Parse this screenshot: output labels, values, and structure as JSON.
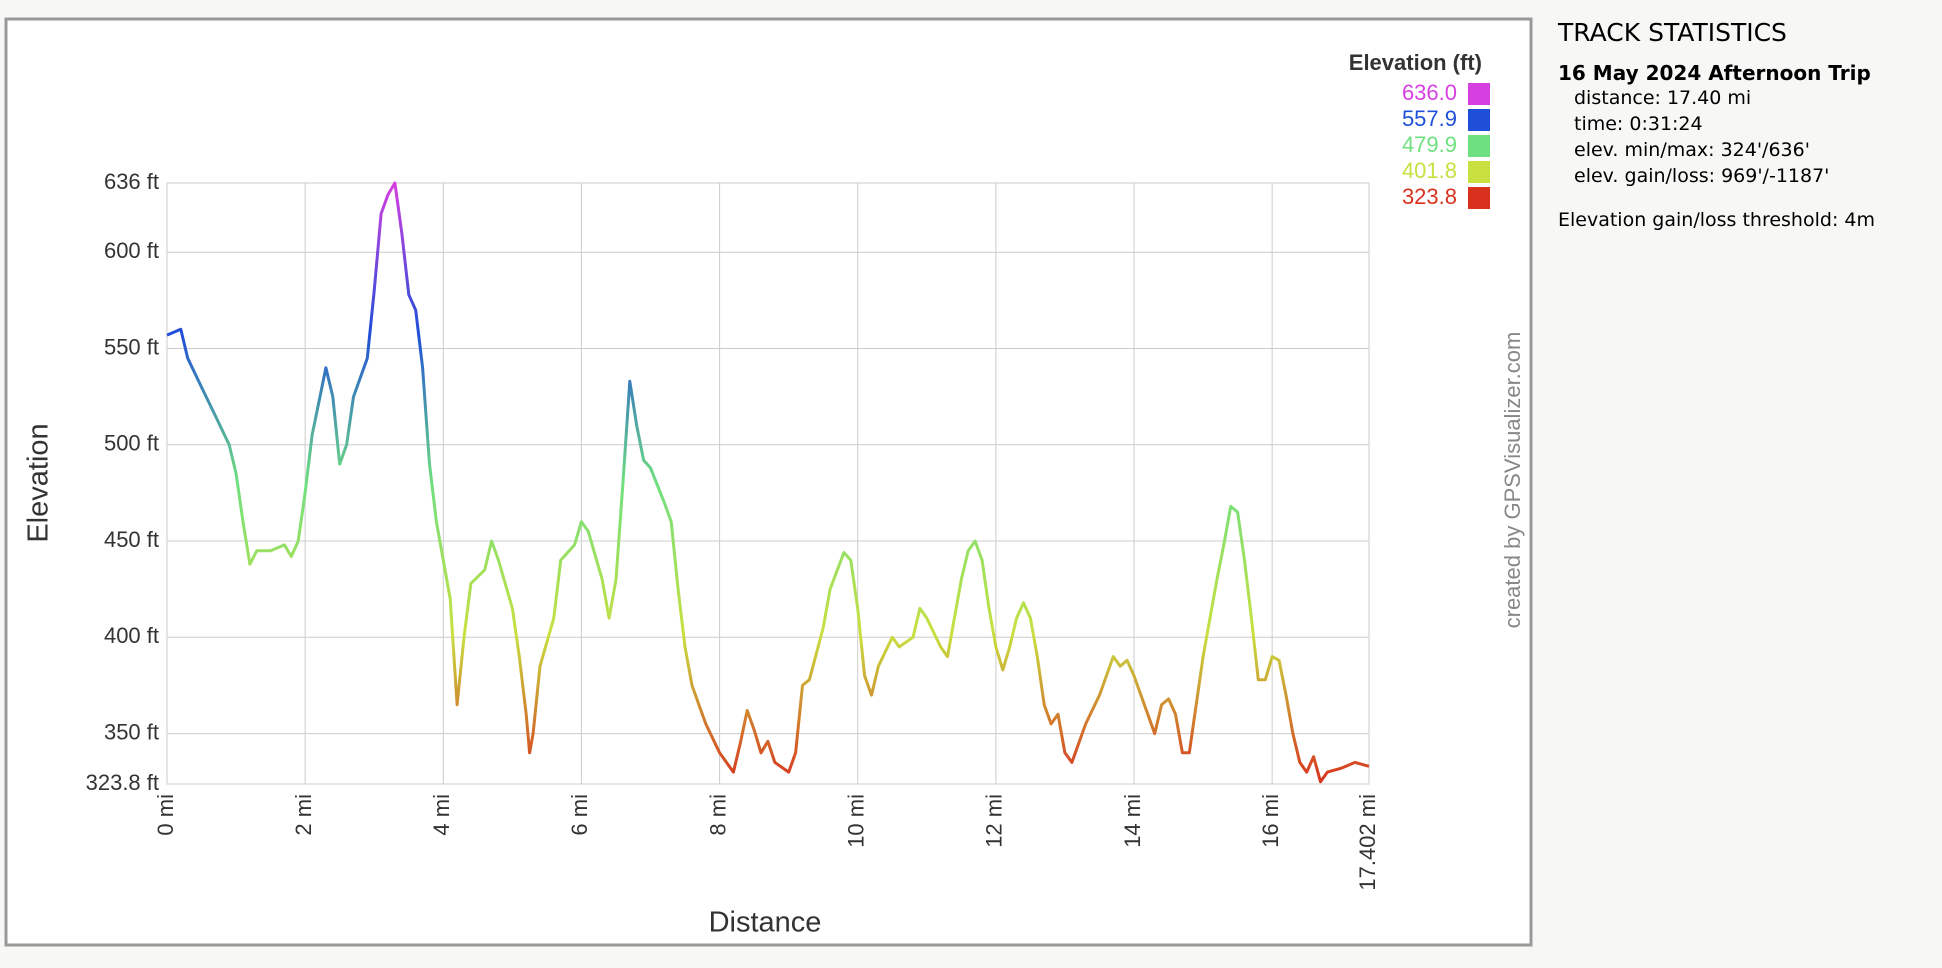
{
  "chart_data": {
    "type": "line",
    "x_label": "Distance",
    "y_label": "Elevation",
    "watermark": "created by GPSVisualizer.com",
    "x": [
      0,
      0.2,
      0.3,
      0.5,
      0.7,
      0.9,
      1.0,
      1.1,
      1.2,
      1.3,
      1.5,
      1.7,
      1.8,
      1.9,
      2.0,
      2.1,
      2.3,
      2.4,
      2.5,
      2.6,
      2.7,
      2.9,
      3.0,
      3.1,
      3.2,
      3.3,
      3.4,
      3.5,
      3.6,
      3.7,
      3.8,
      3.9,
      4.0,
      4.1,
      4.2,
      4.3,
      4.4,
      4.6,
      4.7,
      4.8,
      5.0,
      5.1,
      5.2,
      5.25,
      5.3,
      5.4,
      5.6,
      5.7,
      5.9,
      6.0,
      6.1,
      6.3,
      6.4,
      6.5,
      6.6,
      6.7,
      6.8,
      6.9,
      7.0,
      7.2,
      7.3,
      7.4,
      7.5,
      7.6,
      7.7,
      7.8,
      8.0,
      8.2,
      8.3,
      8.4,
      8.5,
      8.6,
      8.7,
      8.8,
      9.0,
      9.1,
      9.2,
      9.3,
      9.5,
      9.6,
      9.8,
      9.9,
      10.0,
      10.1,
      10.2,
      10.3,
      10.5,
      10.6,
      10.8,
      10.9,
      11.0,
      11.2,
      11.3,
      11.4,
      11.5,
      11.6,
      11.7,
      11.8,
      11.9,
      12.0,
      12.1,
      12.2,
      12.3,
      12.4,
      12.5,
      12.6,
      12.7,
      12.8,
      12.9,
      13.0,
      13.1,
      13.3,
      13.5,
      13.7,
      13.8,
      13.9,
      14.0,
      14.2,
      14.3,
      14.4,
      14.5,
      14.6,
      14.7,
      14.8,
      15.0,
      15.1,
      15.2,
      15.3,
      15.4,
      15.5,
      15.6,
      15.7,
      15.8,
      15.9,
      16.0,
      16.1,
      16.2,
      16.3,
      16.4,
      16.5,
      16.6,
      16.7,
      16.8,
      17.0,
      17.2,
      17.402
    ],
    "series": [
      {
        "name": "Elevation (ft)",
        "values": [
          557,
          560,
          545,
          530,
          515,
          500,
          485,
          460,
          438,
          445,
          445,
          448,
          442,
          450,
          475,
          505,
          540,
          525,
          490,
          500,
          525,
          545,
          580,
          620,
          630,
          636,
          610,
          578,
          570,
          540,
          490,
          460,
          440,
          420,
          365,
          400,
          428,
          435,
          450,
          440,
          415,
          390,
          360,
          340,
          350,
          385,
          410,
          440,
          448,
          460,
          455,
          430,
          410,
          430,
          480,
          533,
          510,
          492,
          488,
          470,
          460,
          425,
          395,
          375,
          365,
          355,
          340,
          330,
          345,
          362,
          352,
          340,
          346,
          335,
          330,
          340,
          375,
          378,
          405,
          425,
          444,
          440,
          415,
          380,
          370,
          385,
          400,
          395,
          400,
          415,
          410,
          395,
          390,
          410,
          430,
          445,
          450,
          440,
          415,
          395,
          383,
          395,
          410,
          418,
          410,
          390,
          365,
          355,
          360,
          340,
          335,
          355,
          370,
          390,
          385,
          388,
          380,
          360,
          350,
          365,
          368,
          360,
          340,
          340,
          390,
          410,
          430,
          448,
          468,
          465,
          440,
          410,
          378,
          378,
          390,
          388,
          370,
          350,
          335,
          330,
          338,
          325,
          330,
          332,
          335,
          333
        ]
      }
    ],
    "color_scale": [
      {
        "value": 636.0,
        "label": "636.0",
        "color": "#d63fe0"
      },
      {
        "value": 557.9,
        "label": "557.9",
        "color": "#1f4fd8"
      },
      {
        "value": 479.9,
        "label": "479.9",
        "color": "#6fe07f"
      },
      {
        "value": 401.8,
        "label": "401.8",
        "color": "#c8e040"
      },
      {
        "value": 323.8,
        "label": "323.8",
        "color": "#d8321f"
      }
    ],
    "xlim": [
      0,
      17.402
    ],
    "xticks": [
      {
        "value": 0,
        "label": "0 mi"
      },
      {
        "value": 2,
        "label": "2 mi"
      },
      {
        "value": 4,
        "label": "4 mi"
      },
      {
        "value": 6,
        "label": "6 mi"
      },
      {
        "value": 8,
        "label": "8 mi"
      },
      {
        "value": 10,
        "label": "10 mi"
      },
      {
        "value": 12,
        "label": "12 mi"
      },
      {
        "value": 14,
        "label": "14 mi"
      },
      {
        "value": 16,
        "label": "16 mi"
      },
      {
        "value": 17.402,
        "label": "17.402 mi"
      }
    ],
    "ylim": [
      323.8,
      636
    ],
    "yticks": [
      {
        "value": 323.8,
        "label": "323.8 ft"
      },
      {
        "value": 350,
        "label": "350 ft"
      },
      {
        "value": 400,
        "label": "400 ft"
      },
      {
        "value": 450,
        "label": "450 ft"
      },
      {
        "value": 500,
        "label": "500 ft"
      },
      {
        "value": 550,
        "label": "550 ft"
      },
      {
        "value": 600,
        "label": "600 ft"
      },
      {
        "value": 636,
        "label": "636 ft"
      }
    ],
    "grid": true
  },
  "stats": {
    "title": "TRACK STATISTICS",
    "trip": "16 May 2024 Afternoon Trip",
    "lines": [
      "distance: 17.40 mi",
      "time: 0:31:24",
      "elev. min/max: 324'/636'",
      "elev. gain/loss: 969'/-1187'"
    ],
    "threshold": "Elevation gain/loss threshold: 4m"
  }
}
